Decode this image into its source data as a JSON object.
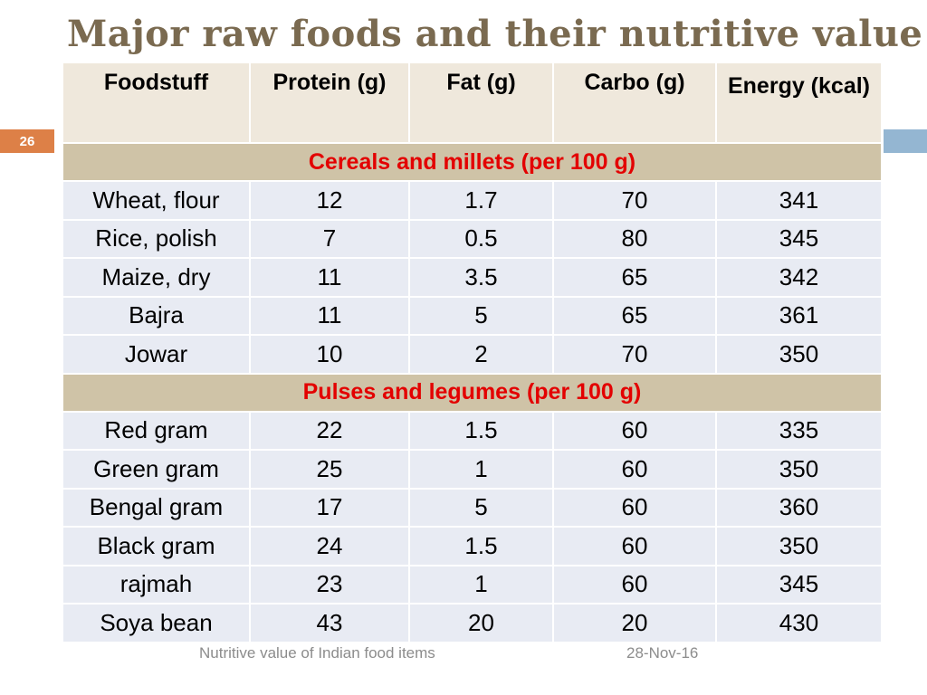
{
  "title": "Major raw foods and their nutritive value",
  "slide_number": "26",
  "footer": {
    "left": "Nutritive value of Indian food items",
    "right": "28-Nov-16"
  },
  "table": {
    "headers": [
      "Foodstuff",
      "Protein (g)",
      "Fat (g)",
      "Carbo (g)",
      "Energy (kcal)"
    ],
    "sections": [
      {
        "title": "Cereals and millets (per 100 g)",
        "rows": [
          [
            "Wheat, flour",
            "12",
            "1.7",
            "70",
            "341"
          ],
          [
            "Rice, polish",
            "7",
            "0.5",
            "80",
            "345"
          ],
          [
            "Maize, dry",
            "11",
            "3.5",
            "65",
            "342"
          ],
          [
            "Bajra",
            "11",
            "5",
            "65",
            "361"
          ],
          [
            "Jowar",
            "10",
            "2",
            "70",
            "350"
          ]
        ]
      },
      {
        "title": "Pulses and legumes (per 100 g)",
        "rows": [
          [
            "Red gram",
            "22",
            "1.5",
            "60",
            "335"
          ],
          [
            "Green gram",
            "25",
            "1",
            "60",
            "350"
          ],
          [
            "Bengal gram",
            "17",
            "5",
            "60",
            "360"
          ],
          [
            "Black gram",
            "24",
            "1.5",
            "60",
            "350"
          ],
          [
            "rajmah",
            "23",
            "1",
            "60",
            "345"
          ],
          [
            "Soya bean",
            "43",
            "20",
            "20",
            "430"
          ]
        ]
      }
    ]
  },
  "colors": {
    "title": "#7a6a50",
    "header_bg": "#efe8dc",
    "section_bg": "#cfc3a7",
    "section_text": "#e30000",
    "row_bg": "#e8ebf3",
    "slide_number_bg": "#dd8047",
    "accent_bar": "#94b6d2"
  }
}
